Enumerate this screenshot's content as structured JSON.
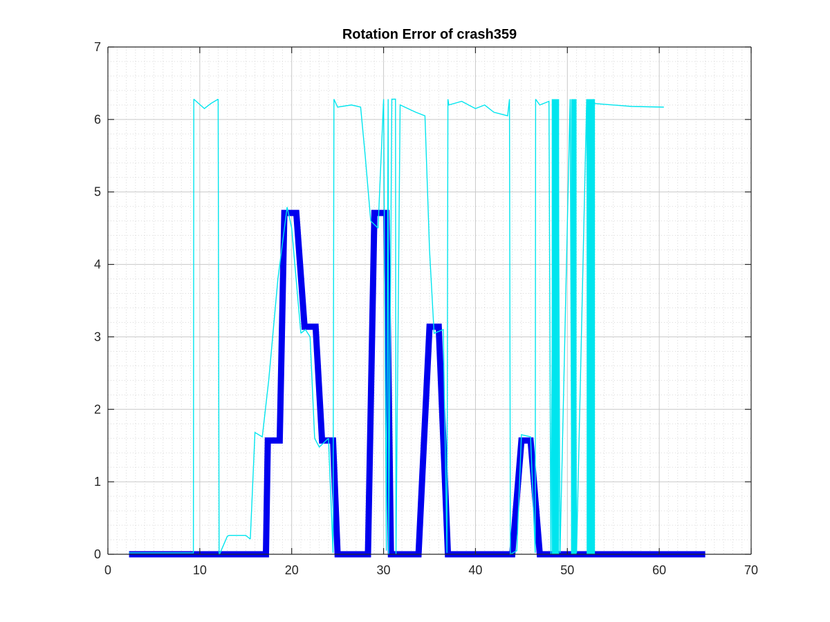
{
  "chart_data": {
    "type": "line",
    "title": "Rotation Error of crash359",
    "xlabel": "",
    "ylabel": "",
    "xlim": [
      0,
      70
    ],
    "ylim": [
      0,
      7
    ],
    "xticks": [
      0,
      10,
      20,
      30,
      40,
      50,
      60,
      70
    ],
    "yticks": [
      0,
      1,
      2,
      3,
      4,
      5,
      6,
      7
    ],
    "grid": true,
    "minor_grid": true,
    "colors": {
      "series_a": "#0000ee",
      "series_b": "#00e5ee",
      "axis": "#262626",
      "grid": "#c8c8c8",
      "minor_grid": "#d9d9d9"
    },
    "series": [
      {
        "color": "#0000ee",
        "style": "thick",
        "x": [
          2.3,
          17.2,
          17.4,
          18.7,
          19.2,
          20.5,
          21.4,
          22.6,
          23.3,
          24.5,
          25.0,
          28.3,
          29.0,
          30.3,
          30.8,
          31.0,
          33.8,
          35.0,
          36.0,
          37.0,
          44.0,
          45.0,
          46.0,
          47.0,
          65.0
        ],
        "y": [
          0.0,
          0.0,
          1.57,
          1.57,
          4.71,
          4.71,
          3.14,
          3.14,
          1.57,
          1.57,
          0.0,
          0.0,
          4.71,
          4.71,
          0.0,
          0.0,
          0.0,
          3.14,
          3.14,
          0.0,
          0.0,
          1.57,
          1.57,
          0.0,
          0.0
        ]
      },
      {
        "color": "#00e5ee",
        "style": "thin",
        "x": [
          2.3,
          9.0,
          9.3,
          9.35,
          10.5,
          11.2,
          12.0,
          12.1,
          12.15,
          13.0,
          13.2,
          15.0,
          15.5,
          16.0,
          16.8,
          17.5,
          18.5,
          19.5,
          20.0,
          21.0,
          21.5,
          22.0,
          22.5,
          23.0,
          24.0,
          24.5,
          24.6,
          25.0,
          26.5,
          27.5,
          28.0,
          28.6,
          29.4,
          30.0,
          30.3,
          30.5,
          30.55,
          30.9,
          31.3,
          31.35,
          31.8,
          33.5,
          34.5,
          35.0,
          35.5,
          36.5,
          36.9,
          37.0,
          37.1,
          38.5,
          40.0,
          41.0,
          42.0,
          43.5,
          43.7,
          43.8,
          44.5,
          45.0,
          46.0,
          46.5,
          46.55,
          47.0,
          48.0,
          48.2,
          48.5,
          48.7,
          49.0,
          49.2,
          50.3,
          50.5,
          50.8,
          51.0,
          52.1,
          52.3,
          52.8,
          53.0,
          55.0,
          57.0,
          60.5
        ],
        "y": [
          0.02,
          0.02,
          0.02,
          6.28,
          6.15,
          6.22,
          6.28,
          0.0,
          0.0,
          0.25,
          0.26,
          0.26,
          0.21,
          1.68,
          1.62,
          2.4,
          3.8,
          4.79,
          4.5,
          3.05,
          3.1,
          3.0,
          1.6,
          1.48,
          1.6,
          0.02,
          6.28,
          6.17,
          6.2,
          6.17,
          5.5,
          4.6,
          4.5,
          6.28,
          0.05,
          6.28,
          0.0,
          6.28,
          6.28,
          0.0,
          6.2,
          6.1,
          6.05,
          4.2,
          3.05,
          3.1,
          0.02,
          6.28,
          6.2,
          6.25,
          6.15,
          6.2,
          6.1,
          6.05,
          6.28,
          0.0,
          0.05,
          1.65,
          1.62,
          0.02,
          6.28,
          6.2,
          6.25,
          0.0,
          6.28,
          0.0,
          6.28,
          0.02,
          6.28,
          0.0,
          6.28,
          0.02,
          6.28,
          0.0,
          6.28,
          6.22,
          6.2,
          6.18,
          6.17
        ]
      }
    ],
    "filled_spikes": [
      {
        "x0": 48.3,
        "x1": 49.1
      },
      {
        "x0": 50.4,
        "x1": 51.0
      },
      {
        "x0": 52.1,
        "x1": 53.0
      }
    ]
  }
}
